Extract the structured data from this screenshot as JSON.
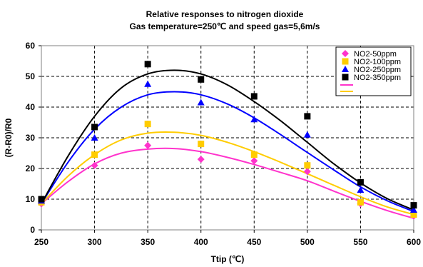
{
  "chart_data": {
    "type": "scatter",
    "title": "Relative responses to nitrogen dioxide",
    "subtitle": "Gas temperature=250℃ and speed gas=5,6m/s",
    "xlabel": "Ttip (℃)",
    "ylabel": "(R-R0)/R0",
    "xlim": [
      250,
      600
    ],
    "ylim": [
      0,
      60
    ],
    "xticks": [
      "250",
      "300",
      "350",
      "400",
      "450",
      "500",
      "550",
      "600"
    ],
    "yticks": [
      "0",
      "10",
      "20",
      "30",
      "40",
      "50",
      "60"
    ],
    "x": [
      250,
      300,
      350,
      400,
      450,
      500,
      550,
      600
    ],
    "grid": "dashed",
    "legend_position": "top-right",
    "series": [
      {
        "name": "NO2-50ppm",
        "marker": "diamond",
        "color": "#ff33cc",
        "values": [
          8.5,
          21,
          27.5,
          23,
          22.5,
          19,
          8.5,
          4.5
        ]
      },
      {
        "name": "NO2-100ppm",
        "marker": "square",
        "color": "#ffcc00",
        "values": [
          9,
          24.5,
          34.5,
          28,
          24.5,
          21,
          9,
          5
        ]
      },
      {
        "name": "NO2-250ppm",
        "marker": "triangle",
        "color": "#0000ff",
        "values": [
          9.5,
          30,
          47.5,
          41.5,
          36,
          31,
          13,
          6.5
        ]
      },
      {
        "name": "NO2-350ppm",
        "marker": "square",
        "color": "#000000",
        "values": [
          10,
          33.5,
          54,
          49,
          43.5,
          37,
          15.5,
          8
        ]
      }
    ],
    "trendlines": [
      {
        "color": "#ff33cc",
        "x": [
          250,
          275,
          300,
          325,
          350,
          375,
          400,
          425,
          450,
          475,
          500,
          525,
          550,
          575,
          600
        ],
        "values": [
          8.5,
          15.7,
          21.5,
          25,
          26.3,
          26.5,
          25.5,
          23.6,
          21.3,
          18.7,
          16,
          12.6,
          9.3,
          6.3,
          3.8
        ]
      },
      {
        "color": "#ffcc00",
        "x": [
          250,
          275,
          300,
          325,
          350,
          375,
          400,
          425,
          450,
          475,
          500,
          525,
          550,
          575,
          600
        ],
        "values": [
          8.5,
          17.5,
          24.5,
          29.3,
          31.5,
          31.8,
          30.8,
          28.5,
          25.5,
          22,
          18.3,
          14.5,
          10.8,
          7.5,
          5
        ]
      },
      {
        "color": "#0000ff",
        "x": [
          250,
          275,
          300,
          325,
          350,
          375,
          400,
          425,
          450,
          475,
          500,
          525,
          550,
          575,
          600
        ],
        "values": [
          8.5,
          22,
          32.8,
          40,
          44,
          45,
          44,
          41,
          36.5,
          31,
          25.2,
          19.5,
          14,
          9.5,
          6
        ]
      },
      {
        "color": "#000000",
        "x": [
          250,
          275,
          300,
          325,
          350,
          375,
          400,
          425,
          450,
          475,
          500,
          525,
          550,
          575,
          600
        ],
        "values": [
          8.5,
          24,
          37,
          46.2,
          50.8,
          52,
          50.8,
          47.2,
          41.8,
          35.5,
          28.5,
          21.5,
          15.3,
          10.2,
          6.5
        ]
      }
    ]
  }
}
